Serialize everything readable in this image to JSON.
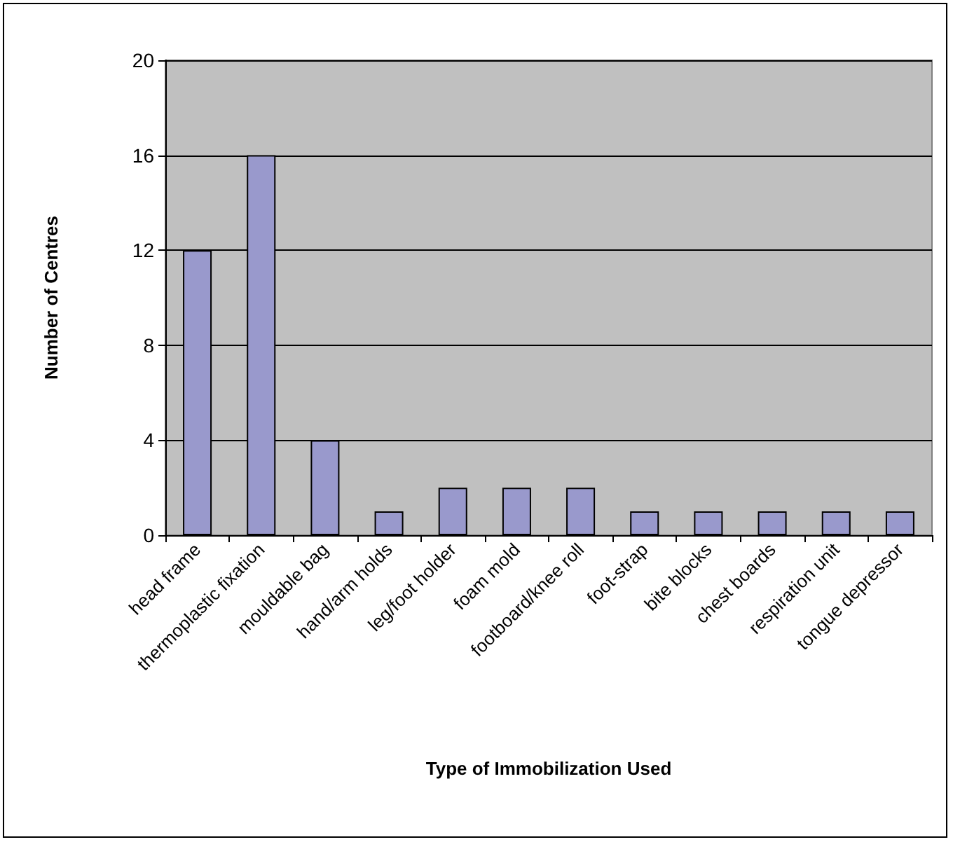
{
  "chart_data": {
    "type": "bar",
    "xlabel": "Type of Immobilization Used",
    "ylabel": "Number of Centres",
    "categories": [
      "head frame",
      "thermoplastic fixation",
      "mouldable bag",
      "hand/arm holds",
      "leg/foot holder",
      "foam mold",
      "footboard/knee roll",
      "foot-strap",
      "bite blocks",
      "chest boards",
      "respiration unit",
      "tongue depressor"
    ],
    "values": [
      12,
      16,
      4,
      1,
      2,
      2,
      2,
      1,
      1,
      1,
      1,
      1
    ],
    "color": "#9999cc",
    "ylim": [
      0,
      20
    ],
    "yticks": [
      0,
      4,
      8,
      12,
      16,
      20
    ],
    "grid": "y"
  }
}
